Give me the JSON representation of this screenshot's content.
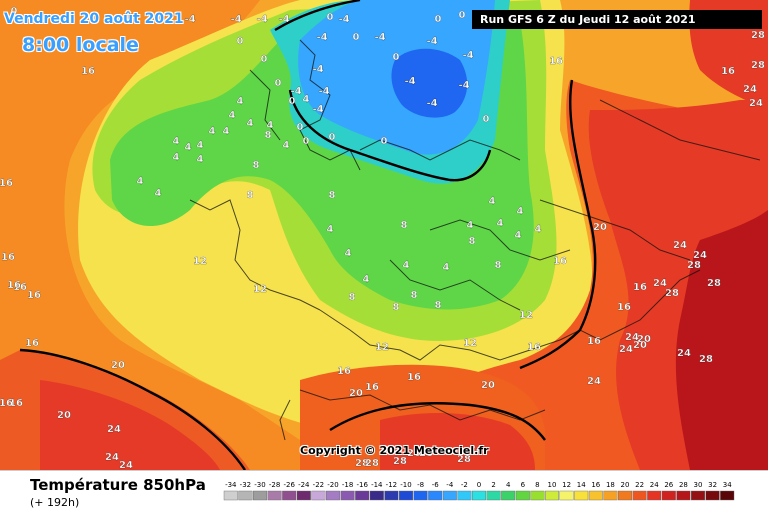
{
  "map": {
    "date_label": "Vendredi 20 août 2021",
    "time_label": "8:00 locale",
    "run_label": "Run GFS 6 Z du Jeudi 12 août 2021",
    "copyright": "Copyright © 2021 Meteociel.fr",
    "field_labels": [
      "-4",
      "-4",
      "-4",
      "-4",
      "-4",
      "-4",
      "-4",
      "-4",
      "-4",
      "-4",
      "-4",
      "-4",
      "-4",
      "-4",
      "-4",
      "-4",
      "0",
      "0",
      "0",
      "0",
      "0",
      "0",
      "0",
      "0",
      "0",
      "0",
      "0",
      "0",
      "0",
      "0",
      "0",
      "4",
      "4",
      "4",
      "4",
      "4",
      "4",
      "4",
      "4",
      "4",
      "4",
      "4",
      "4",
      "4",
      "4",
      "4",
      "4",
      "4",
      "4",
      "4",
      "4",
      "4",
      "4",
      "4",
      "4",
      "4",
      "4",
      "8",
      "8",
      "8",
      "8",
      "8",
      "8",
      "8",
      "8",
      "8",
      "8",
      "8",
      "12",
      "12",
      "12",
      "12",
      "12",
      "16",
      "16",
      "16",
      "16",
      "16",
      "16",
      "16",
      "16",
      "16",
      "16",
      "16",
      "16",
      "16",
      "16",
      "16",
      "16",
      "16",
      "16",
      "16",
      "20",
      "20",
      "20",
      "20",
      "20",
      "20",
      "20",
      "20",
      "24",
      "24",
      "24",
      "24",
      "24",
      "24",
      "24",
      "24",
      "24",
      "24",
      "24",
      "24",
      "24",
      "28",
      "28",
      "28",
      "28",
      "28",
      "28",
      "28",
      "28",
      "28",
      "28",
      "28"
    ]
  },
  "legend": {
    "title": "Température 850hPa",
    "subtitle": "(+ 192h)",
    "scale": [
      {
        "label": "-34",
        "color": "#cfcfcf"
      },
      {
        "label": "-32",
        "color": "#b5b5b5"
      },
      {
        "label": "-30",
        "color": "#9d9d9d"
      },
      {
        "label": "-28",
        "color": "#a97ba9"
      },
      {
        "label": "-26",
        "color": "#905090"
      },
      {
        "label": "-24",
        "color": "#6e2a6e"
      },
      {
        "label": "-22",
        "color": "#c8a8d8"
      },
      {
        "label": "-20",
        "color": "#a47cc4"
      },
      {
        "label": "-18",
        "color": "#8a5ab0"
      },
      {
        "label": "-16",
        "color": "#6a3a98"
      },
      {
        "label": "-14",
        "color": "#3a2a8a"
      },
      {
        "label": "-12",
        "color": "#2c3ab0"
      },
      {
        "label": "-10",
        "color": "#1f4ad6"
      },
      {
        "label": "-8",
        "color": "#1e66f0"
      },
      {
        "label": "-6",
        "color": "#2a88ff"
      },
      {
        "label": "-4",
        "color": "#36a6ff"
      },
      {
        "label": "-2",
        "color": "#30c8f8"
      },
      {
        "label": "0",
        "color": "#2ae0e0"
      },
      {
        "label": "2",
        "color": "#2cd8a4"
      },
      {
        "label": "4",
        "color": "#3cd26a"
      },
      {
        "label": "6",
        "color": "#62d640"
      },
      {
        "label": "8",
        "color": "#98e030"
      },
      {
        "label": "10",
        "color": "#cdeb38"
      },
      {
        "label": "12",
        "color": "#f4f36a"
      },
      {
        "label": "14",
        "color": "#f7e13a"
      },
      {
        "label": "16",
        "color": "#f7c22e"
      },
      {
        "label": "18",
        "color": "#f6a024"
      },
      {
        "label": "20",
        "color": "#f27a1e"
      },
      {
        "label": "22",
        "color": "#ee5620"
      },
      {
        "label": "24",
        "color": "#e63424"
      },
      {
        "label": "26",
        "color": "#d0221e"
      },
      {
        "label": "28",
        "color": "#b4161a"
      },
      {
        "label": "30",
        "color": "#941012"
      },
      {
        "label": "32",
        "color": "#760a0c"
      },
      {
        "label": "34",
        "color": "#5a0608"
      }
    ]
  }
}
